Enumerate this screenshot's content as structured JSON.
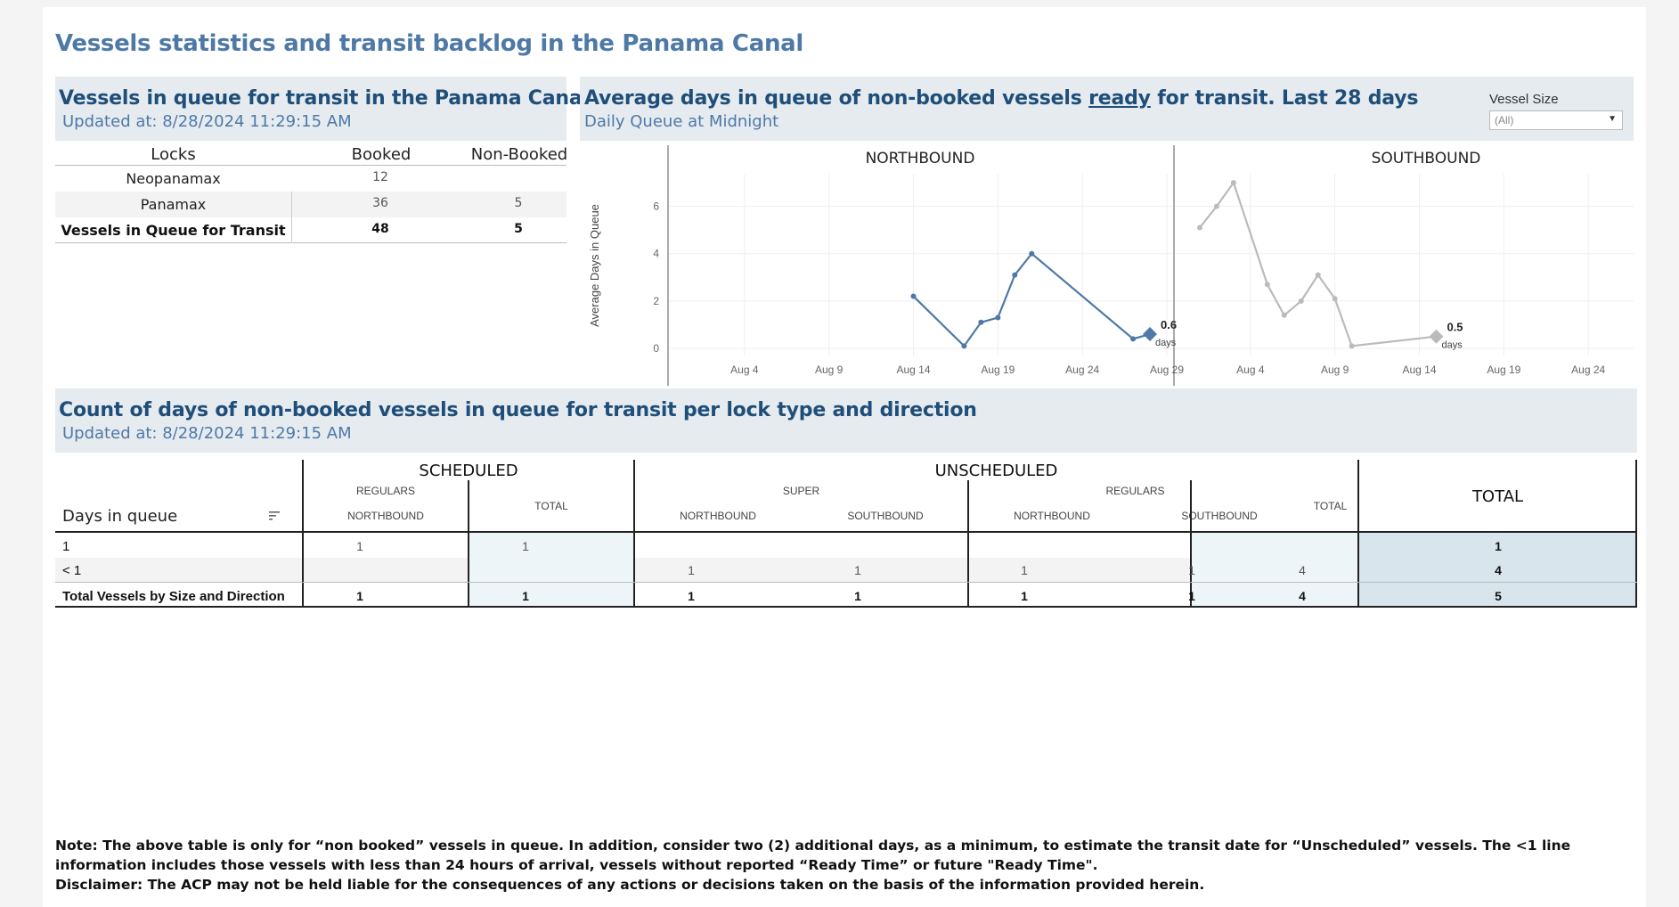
{
  "title": "Vessels statistics and transit backlog in the Panama Canal",
  "queue_panel": {
    "title": "Vessels in queue for transit in the Panama Canal",
    "updated": "Updated at:  8/28/2024 11:29:15 AM",
    "headers": [
      "Locks",
      "Booked",
      "Non-Booked"
    ],
    "rows": [
      {
        "lock": "Neopanamax",
        "booked": "12",
        "non_booked": ""
      },
      {
        "lock": "Panamax",
        "booked": "36",
        "non_booked": "5"
      },
      {
        "lock": "Vessels in Queue for Transit",
        "booked": "48",
        "non_booked": "5"
      }
    ]
  },
  "chart_panel": {
    "title_pre": "Average days in queue of non-booked vessels ",
    "title_underlined": "ready",
    "title_post": " for transit. Last 28 days",
    "subtitle": "Daily Queue at Midnight",
    "filter_label": "Vessel Size",
    "filter_value": "(All)"
  },
  "chart_data": [
    {
      "type": "line",
      "title": "NORTHBOUND",
      "ylabel": "Average Days in Queue",
      "ylim": [
        0,
        7
      ],
      "yticks": [
        0,
        2,
        4,
        6
      ],
      "xlim": [
        "2024-07-31",
        "2024-08-29"
      ],
      "xticks": [
        "Aug 4",
        "Aug 9",
        "Aug 14",
        "Aug 19",
        "Aug 24",
        "Aug 29"
      ],
      "color": "#4e79a7",
      "x": [
        "2024-08-14",
        "2024-08-17",
        "2024-08-18",
        "2024-08-19",
        "2024-08-20",
        "2024-08-21",
        "2024-08-27",
        "2024-08-28"
      ],
      "y": [
        2.2,
        0.1,
        1.1,
        1.3,
        3.1,
        4.0,
        0.4,
        0.6
      ],
      "last_label": "0.6",
      "last_unit": "days"
    },
    {
      "type": "line",
      "title": "SOUTHBOUND",
      "ylim": [
        0,
        7
      ],
      "xlim": [
        "2024-07-31",
        "2024-08-29"
      ],
      "xticks": [
        "Aug 4",
        "Aug 9",
        "Aug 14",
        "Aug 19",
        "Aug 24",
        "Aug 29"
      ],
      "color": "#bbbbbb",
      "x": [
        "2024-08-01",
        "2024-08-02",
        "2024-08-03",
        "2024-08-05",
        "2024-08-06",
        "2024-08-07",
        "2024-08-08",
        "2024-08-09",
        "2024-08-10",
        "2024-08-15"
      ],
      "y": [
        5.1,
        6.0,
        7.0,
        2.7,
        1.4,
        2.0,
        3.1,
        2.1,
        0.1,
        0.5
      ],
      "last_label": "0.5",
      "last_unit": "days"
    }
  ],
  "count_panel": {
    "title": "Count of days of non-booked vessels in queue for transit per lock type and direction",
    "updated": "Updated at:  8/28/2024 11:29:15 AM",
    "row_header": "Days in queue",
    "scheduled": "SCHEDULED",
    "unscheduled": "UNSCHEDULED",
    "total": "TOTAL",
    "regulars": "REGULARS",
    "super": "SUPER",
    "northbound": "NORTHBOUND",
    "southbound": "SOUTHBOUND",
    "sub_total": "TOTAL",
    "rows": [
      {
        "label": "1",
        "vals": [
          "1",
          "1",
          "",
          "",
          "",
          "",
          "",
          "1"
        ]
      },
      {
        "label": "< 1",
        "vals": [
          "",
          "",
          "1",
          "1",
          "1",
          "1",
          "4",
          "4"
        ]
      },
      {
        "label": "Total Vessels by Size and Direction",
        "vals": [
          "1",
          "1",
          "1",
          "1",
          "1",
          "1",
          "4",
          "5"
        ]
      }
    ]
  },
  "note_line1": "Note:  The above table is only for “non booked” vessels in queue. In addition, consider two (2) additional days, as a minimum, to estimate the transit date for “Unscheduled” vessels.  The <1 line information includes those vessels with less than 24 hours of arrival, vessels without reported “Ready Time” or future \"Ready Time\".",
  "note_line2": "Disclaimer: The ACP may not be held liable for the consequences of any actions or decisions taken on the basis of the information provided herein."
}
